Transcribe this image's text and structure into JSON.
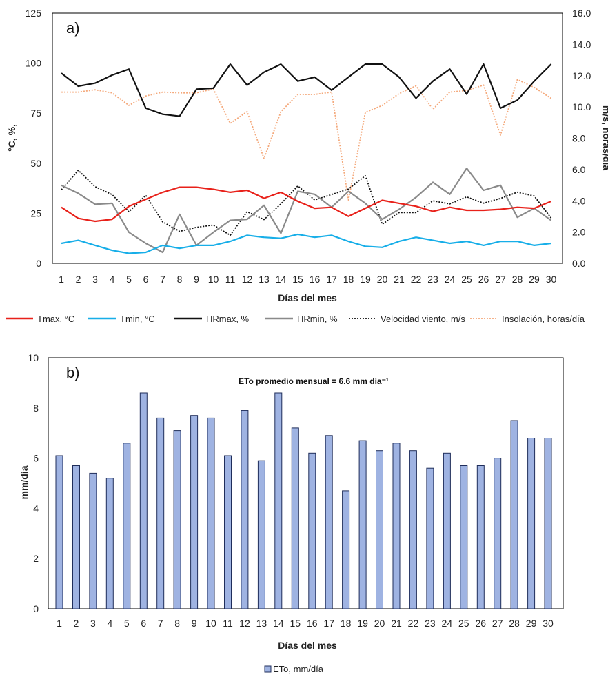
{
  "chart_data": [
    {
      "type": "line",
      "panel_label": "a)",
      "xlabel": "Días del mes",
      "ylabel": "°C, %,",
      "y2label": "m/s, horas/día",
      "x": [
        1,
        2,
        3,
        4,
        5,
        6,
        7,
        8,
        9,
        10,
        11,
        12,
        13,
        14,
        15,
        16,
        17,
        18,
        19,
        20,
        21,
        22,
        23,
        24,
        25,
        26,
        27,
        28,
        29,
        30
      ],
      "ylim": [
        0,
        125
      ],
      "yticks": [
        "0",
        "25",
        "50",
        "75",
        "100",
        "125"
      ],
      "y2lim": [
        0,
        16
      ],
      "y2ticks": [
        "0.0",
        "2.0",
        "4.0",
        "6.0",
        "8.0",
        "10.0",
        "12.0",
        "14.0",
        "16.0"
      ],
      "legend_position": "bottom",
      "series": [
        {
          "name": "Tmax, °C",
          "axis": "left",
          "color": "#e8211a",
          "style": "solid",
          "values": [
            28,
            22.5,
            21,
            22,
            28.5,
            32,
            35.5,
            38,
            38,
            37,
            35.5,
            36.5,
            32.5,
            35.5,
            31,
            27.5,
            28,
            23.5,
            27.5,
            31.5,
            30,
            28.5,
            26,
            28,
            26.5,
            26.5,
            27,
            28,
            27.5,
            31
          ]
        },
        {
          "name": "Tmin, °C",
          "axis": "left",
          "color": "#17aee8",
          "style": "solid",
          "values": [
            10,
            11.5,
            9,
            6.5,
            5,
            5.5,
            9,
            7.5,
            9,
            9,
            11,
            14,
            13,
            12.5,
            14.5,
            13,
            14,
            11,
            8.5,
            8,
            11,
            13,
            11.5,
            10,
            11,
            9,
            11,
            11,
            9,
            10
          ]
        },
        {
          "name": "HRmax, %",
          "axis": "left",
          "color": "#111111",
          "style": "solid",
          "values": [
            95,
            88.5,
            90,
            94,
            97,
            77.5,
            74.5,
            73.5,
            87,
            87.5,
            99.5,
            89,
            95.5,
            99.5,
            91,
            93,
            86.5,
            93,
            99.5,
            99.5,
            93,
            82.5,
            91,
            97,
            84.5,
            99.5,
            77.5,
            81.5,
            91,
            99.5
          ]
        },
        {
          "name": "HRmin, %",
          "axis": "left",
          "color": "#8a8a8a",
          "style": "solid",
          "values": [
            39,
            35,
            29.5,
            30,
            15.5,
            10,
            5.5,
            24.5,
            9,
            15.5,
            21.5,
            22,
            29,
            15,
            36,
            34.5,
            28,
            36,
            30,
            22,
            27,
            33,
            40.5,
            34.5,
            47.5,
            36.5,
            39,
            23,
            27.5,
            21.5
          ]
        },
        {
          "name": "Velocidad viento, m/s",
          "axis": "right",
          "color": "#111111",
          "style": "dotted",
          "values": [
            4.7,
            5.95,
            4.9,
            4.4,
            3.3,
            4.35,
            2.65,
            2.05,
            2.3,
            2.45,
            1.8,
            3.3,
            2.8,
            3.8,
            4.95,
            4.05,
            4.4,
            4.75,
            5.6,
            2.5,
            3.25,
            3.25,
            4.0,
            3.8,
            4.25,
            3.85,
            4.15,
            4.55,
            4.3,
            2.9
          ]
        },
        {
          "name": "Insolación, horas/día",
          "axis": "right",
          "color": "#f4a87a",
          "style": "dotted",
          "values": [
            10.95,
            10.95,
            11.1,
            10.9,
            10.1,
            10.7,
            10.95,
            10.9,
            10.9,
            11.15,
            8.95,
            9.7,
            6.7,
            9.7,
            10.8,
            10.8,
            10.95,
            4.05,
            9.65,
            10.1,
            10.85,
            11.35,
            9.85,
            10.95,
            11.05,
            11.4,
            8.2,
            11.75,
            11.25,
            10.55
          ]
        }
      ]
    },
    {
      "type": "bar",
      "panel_label": "b)",
      "xlabel": "Días del mes",
      "ylabel": "mm/día",
      "ylim": [
        0,
        10
      ],
      "yticks": [
        "0",
        "2",
        "4",
        "6",
        "8",
        "10"
      ],
      "annotation": "ETo promedio mensual = 6.6 mm día⁻¹",
      "legend_position": "bottom",
      "categories": [
        "1",
        "2",
        "3",
        "4",
        "5",
        "6",
        "7",
        "8",
        "9",
        "10",
        "11",
        "12",
        "13",
        "14",
        "15",
        "16",
        "17",
        "18",
        "19",
        "20",
        "21",
        "22",
        "23",
        "24",
        "25",
        "26",
        "27",
        "28",
        "29",
        "30"
      ],
      "series": [
        {
          "name": "ETo, mm/día",
          "color": "#9fb3e2",
          "edge": "#1f2d5a",
          "values": [
            6.1,
            5.7,
            5.4,
            5.2,
            6.6,
            8.6,
            7.6,
            7.1,
            7.7,
            7.6,
            6.1,
            7.9,
            5.9,
            8.6,
            7.2,
            6.2,
            6.9,
            4.7,
            6.7,
            6.3,
            6.6,
            6.3,
            5.6,
            6.2,
            5.7,
            5.7,
            6.0,
            7.5,
            6.8,
            6.8
          ]
        }
      ]
    }
  ]
}
